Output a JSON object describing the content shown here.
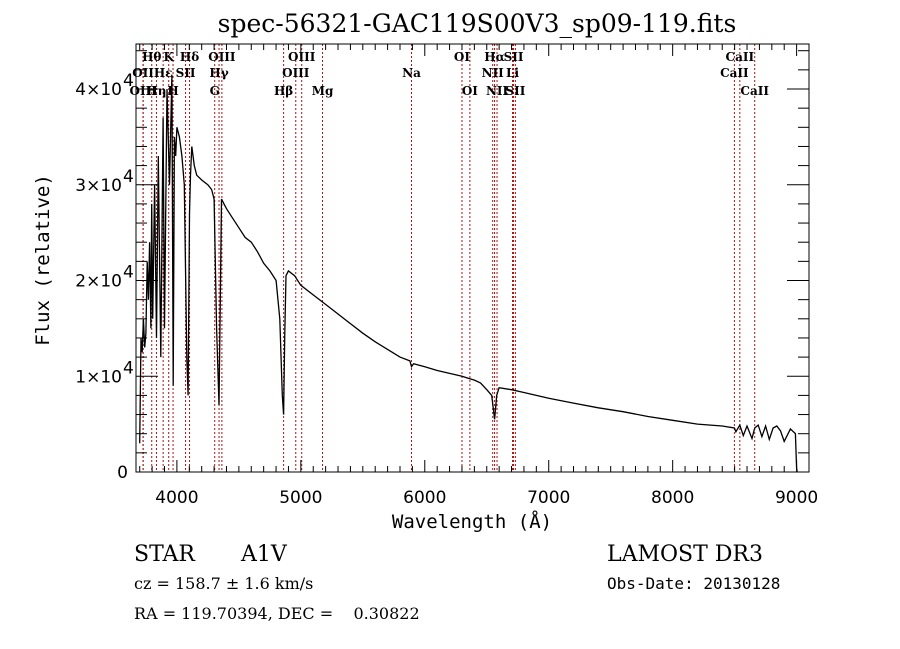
{
  "chart_data": {
    "type": "line",
    "title": "spec-56321-GAC119S00V3_sp09-119.fits",
    "xlabel": "Wavelength (Å)",
    "ylabel": "Flux (relative)",
    "xlim": [
      3670,
      9100
    ],
    "ylim": [
      0,
      44700
    ],
    "xticks": [
      4000,
      5000,
      6000,
      7000,
      8000,
      9000
    ],
    "xtick_labels": [
      "4000",
      "5000",
      "6000",
      "7000",
      "8000",
      "9000"
    ],
    "yticks": [
      0,
      10000,
      20000,
      30000,
      40000
    ],
    "ytick_labels": [
      {
        "mantissa": "0",
        "exp": ""
      },
      {
        "mantissa": "1×10",
        "exp": "4"
      },
      {
        "mantissa": "2×10",
        "exp": "4"
      },
      {
        "mantissa": "3×10",
        "exp": "4"
      },
      {
        "mantissa": "4×10",
        "exp": "4"
      }
    ],
    "grid": false,
    "line_color": "#000000",
    "marker_line_color": "#aa1111",
    "series": [
      {
        "name": "flux",
        "x": [
          3700,
          3710,
          3720,
          3730,
          3740,
          3750,
          3760,
          3770,
          3780,
          3790,
          3797,
          3805,
          3820,
          3835,
          3850,
          3870,
          3889,
          3900,
          3920,
          3940,
          3960,
          3970,
          3980,
          3990,
          4000,
          4020,
          4040,
          4060,
          4080,
          4090,
          4102,
          4110,
          4120,
          4140,
          4160,
          4200,
          4250,
          4280,
          4300,
          4320,
          4340,
          4350,
          4360,
          4380,
          4400,
          4450,
          4500,
          4550,
          4600,
          4650,
          4700,
          4750,
          4800,
          4830,
          4850,
          4861,
          4870,
          4880,
          4900,
          4950,
          5000,
          5100,
          5200,
          5300,
          5400,
          5500,
          5600,
          5700,
          5800,
          5880,
          5893,
          5910,
          6000,
          6100,
          6200,
          6300,
          6350,
          6400,
          6450,
          6500,
          6540,
          6563,
          6580,
          6600,
          6700,
          6800,
          6900,
          7000,
          7200,
          7400,
          7600,
          7800,
          8000,
          8200,
          8400,
          8498,
          8510,
          8542,
          8570,
          8600,
          8640,
          8662,
          8690,
          8720,
          8750,
          8780,
          8810,
          8840,
          8870,
          8900,
          8950,
          8990,
          9000,
          9005
        ],
        "y": [
          3000,
          14000,
          12500,
          16000,
          13000,
          14500,
          22000,
          18000,
          24000,
          15000,
          28000,
          16000,
          30000,
          14000,
          33000,
          12000,
          37000,
          15000,
          40000,
          30000,
          41500,
          9000,
          35000,
          33000,
          36000,
          35000,
          33000,
          30000,
          12000,
          8000,
          27000,
          31000,
          34000,
          32000,
          31000,
          30500,
          30000,
          29500,
          28500,
          15000,
          7000,
          18000,
          28500,
          28000,
          27500,
          26500,
          25500,
          24500,
          24000,
          23000,
          21800,
          21000,
          20000,
          16000,
          8000,
          6000,
          14000,
          20500,
          21000,
          20500,
          19500,
          18500,
          17500,
          16500,
          15500,
          14500,
          13600,
          12800,
          12000,
          11600,
          11000,
          11300,
          11000,
          10600,
          10300,
          10000,
          9800,
          9600,
          9300,
          8600,
          8000,
          5500,
          8000,
          8800,
          8600,
          8300,
          8000,
          7700,
          7200,
          6700,
          6300,
          5800,
          5400,
          5000,
          4800,
          4600,
          4200,
          4900,
          3800,
          4800,
          3500,
          4600,
          4900,
          3700,
          4800,
          3400,
          4600,
          4800,
          4300,
          3200,
          4500,
          4000,
          400,
          0
        ]
      }
    ],
    "spectral_lines": [
      {
        "label": "Hθ",
        "wavelength": 3797,
        "row": 0
      },
      {
        "label": "OII",
        "wavelength": 3727,
        "row": 1
      },
      {
        "label": "OIII",
        "wavelength": 3728,
        "row": 2
      },
      {
        "label": "K",
        "wavelength": 3934,
        "row": 0
      },
      {
        "label": "Hε",
        "wavelength": 3889,
        "row": 1
      },
      {
        "label": "Hη",
        "wavelength": 3835,
        "row": 2
      },
      {
        "label": "SII",
        "wavelength": 4070,
        "row": 1
      },
      {
        "label": "H",
        "wavelength": 3969,
        "row": 2
      },
      {
        "label": "Hδ",
        "wavelength": 4102,
        "row": 0
      },
      {
        "label": "OIII",
        "wavelength": 4363,
        "row": 0
      },
      {
        "label": "Hγ",
        "wavelength": 4340,
        "row": 1
      },
      {
        "label": "G",
        "wavelength": 4305,
        "row": 2
      },
      {
        "label": "OIII",
        "wavelength": 5007,
        "row": 0
      },
      {
        "label": "OIII",
        "wavelength": 4959,
        "row": 1
      },
      {
        "label": "Hβ",
        "wavelength": 4861,
        "row": 2
      },
      {
        "label": "Mg",
        "wavelength": 5175,
        "row": 2
      },
      {
        "label": "Na",
        "wavelength": 5893,
        "row": 1
      },
      {
        "label": "OI",
        "wavelength": 6300,
        "row": 0
      },
      {
        "label": "OI",
        "wavelength": 6364,
        "row": 2
      },
      {
        "label": "Hα",
        "wavelength": 6563,
        "row": 0
      },
      {
        "label": "SII",
        "wavelength": 6716,
        "row": 0
      },
      {
        "label": "NII",
        "wavelength": 6548,
        "row": 1
      },
      {
        "label": "Li",
        "wavelength": 6708,
        "row": 1
      },
      {
        "label": "NII",
        "wavelength": 6583,
        "row": 2
      },
      {
        "label": "SII",
        "wavelength": 6731,
        "row": 2
      },
      {
        "label": "CaII",
        "wavelength": 8542,
        "row": 0
      },
      {
        "label": "CaII",
        "wavelength": 8498,
        "row": 1
      },
      {
        "label": "CaII",
        "wavelength": 8662,
        "row": 2
      }
    ]
  },
  "info": {
    "object_class": "STAR",
    "subclass": "A1V",
    "redshift": "cz = 158.7 ± 1.6 km/s",
    "coordinates": "RA = 119.70394, DEC =    0.30822",
    "survey": "LAMOST DR3",
    "obs_date": "Obs-Date: 20130128"
  }
}
